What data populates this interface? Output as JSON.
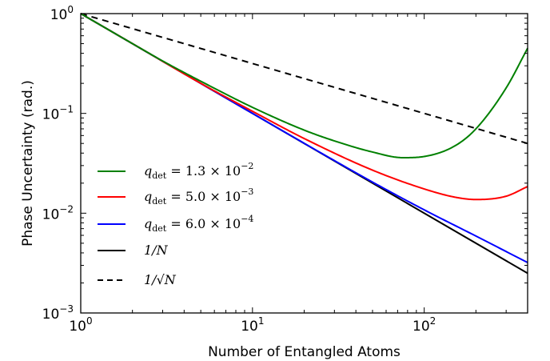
{
  "chart_data": {
    "type": "line",
    "xlabel": "Number of Entangled Atoms",
    "ylabel": "Phase Uncertainty (rad.)",
    "xscale": "log",
    "yscale": "log",
    "xlim": [
      1,
      400
    ],
    "ylim": [
      0.001,
      1
    ],
    "x_ticks": [
      {
        "value": 1,
        "base": "10",
        "exp": "0"
      },
      {
        "value": 10,
        "base": "10",
        "exp": "1"
      },
      {
        "value": 100,
        "base": "10",
        "exp": "2"
      }
    ],
    "y_ticks": [
      {
        "value": 0.001,
        "base": "10",
        "exp": "-3"
      },
      {
        "value": 0.01,
        "base": "10",
        "exp": "-2"
      },
      {
        "value": 0.1,
        "base": "10",
        "exp": "-1"
      },
      {
        "value": 1,
        "base": "10",
        "exp": "0"
      }
    ],
    "grid": false,
    "legend_position": "lower-left",
    "series": [
      {
        "name": "q_det = 1.3 × 10^-2",
        "legend": {
          "var": "q",
          "sub": "det",
          "mant": " = 1.3 × 10",
          "exp": "−2"
        },
        "color": "#008000",
        "dash": "solid",
        "x": [
          1,
          2,
          3,
          5,
          10,
          20,
          30,
          50,
          75,
          100,
          150,
          200,
          300,
          400
        ],
        "y": [
          1.0,
          0.5,
          0.335,
          0.21,
          0.115,
          0.068,
          0.053,
          0.041,
          0.036,
          0.037,
          0.047,
          0.07,
          0.18,
          0.45
        ]
      },
      {
        "name": "q_det = 5.0 × 10^-3",
        "legend": {
          "var": "q",
          "sub": "det",
          "mant": " = 5.0 × 10",
          "exp": "−3"
        },
        "color": "#ff0000",
        "dash": "solid",
        "x": [
          1,
          2,
          5,
          10,
          20,
          50,
          100,
          150,
          200,
          300,
          400
        ],
        "y": [
          1.0,
          0.5,
          0.2,
          0.105,
          0.056,
          0.027,
          0.0175,
          0.0145,
          0.0137,
          0.0148,
          0.0185
        ]
      },
      {
        "name": "q_det = 6.0 × 10^-4",
        "legend": {
          "var": "q",
          "sub": "det",
          "mant": " = 6.0 × 10",
          "exp": "−4"
        },
        "color": "#0000ff",
        "dash": "solid",
        "x": [
          1,
          10,
          50,
          100,
          200,
          400
        ],
        "y": [
          1.0,
          0.1,
          0.0205,
          0.0108,
          0.0059,
          0.0032
        ]
      },
      {
        "name": "1/N",
        "legend": {
          "label": "1/N"
        },
        "color": "#000000",
        "dash": "solid",
        "x": [
          1,
          400
        ],
        "y": [
          1.0,
          0.0025
        ]
      },
      {
        "name": "1/√N",
        "legend": {
          "label": "1/√N"
        },
        "color": "#000000",
        "dash": "dashed",
        "x": [
          1,
          400
        ],
        "y": [
          1.0,
          0.05
        ]
      }
    ]
  }
}
